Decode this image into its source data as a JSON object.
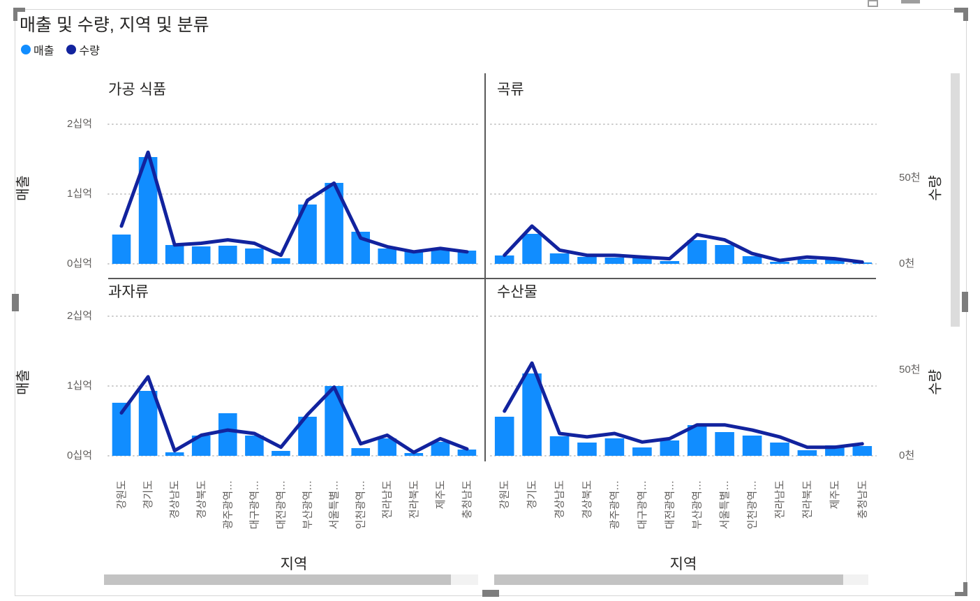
{
  "title": "매출 및 수량, 지역 및 분류",
  "legend": {
    "items": [
      {
        "label": "매출",
        "color": "#118DFF"
      },
      {
        "label": "수량",
        "color": "#12239E"
      }
    ]
  },
  "colors": {
    "bar": "#118DFF",
    "line": "#12239E",
    "grid": "#c9c9c9",
    "tick_text": "#605E5C",
    "divider": "#595959"
  },
  "chart_data": {
    "type": "bar+line small multiples",
    "small_multiple_field": "분류",
    "categories": [
      "강원도",
      "경기도",
      "경상남도",
      "경상북도",
      "광주광역…",
      "대구광역…",
      "대전광역…",
      "부산광역…",
      "서울특별…",
      "인천광역…",
      "전라남도",
      "전라북도",
      "제주도",
      "충청남도"
    ],
    "series_names": [
      "매출",
      "수량"
    ],
    "left_axis": {
      "title": "매출",
      "unit": "십억",
      "ticks": [
        "0십억",
        "1십억",
        "2십억"
      ],
      "range_bil": [
        0,
        2.2
      ]
    },
    "right_axis": {
      "title": "수량",
      "unit": "천",
      "ticks": [
        "0천",
        "50천"
      ],
      "range_k": [
        0,
        89
      ]
    },
    "x_axis": {
      "title": "지역"
    },
    "panels": [
      {
        "title": "가공 식품",
        "sales_bil": [
          0.42,
          1.53,
          0.27,
          0.25,
          0.26,
          0.22,
          0.08,
          0.85,
          1.16,
          0.46,
          0.22,
          0.18,
          0.21,
          0.19
        ],
        "quantity_k": [
          22,
          65,
          11,
          12,
          14,
          12,
          5,
          37,
          47,
          15,
          10,
          7,
          9,
          7
        ]
      },
      {
        "title": "곡류",
        "sales_bil": [
          0.12,
          0.43,
          0.15,
          0.1,
          0.09,
          0.11,
          0.04,
          0.34,
          0.27,
          0.11,
          0.03,
          0.06,
          0.06,
          0.02
        ],
        "quantity_k": [
          5,
          22,
          8,
          5,
          5,
          4,
          3,
          17,
          14,
          6,
          2,
          4,
          3,
          1
        ]
      },
      {
        "title": "과자류",
        "sales_bil": [
          0.76,
          0.93,
          0.05,
          0.29,
          0.61,
          0.29,
          0.07,
          0.56,
          1.0,
          0.11,
          0.25,
          0.04,
          0.2,
          0.09
        ],
        "quantity_k": [
          25,
          46,
          3,
          12,
          15,
          13,
          5,
          24,
          40,
          7,
          12,
          2,
          10,
          4
        ]
      },
      {
        "title": "수산물",
        "sales_bil": [
          0.56,
          1.18,
          0.28,
          0.19,
          0.25,
          0.12,
          0.22,
          0.44,
          0.34,
          0.29,
          0.19,
          0.08,
          0.15,
          0.14
        ],
        "quantity_k": [
          26,
          54,
          13,
          11,
          13,
          8,
          10,
          18,
          18,
          15,
          11,
          5,
          5,
          7
        ]
      }
    ]
  }
}
